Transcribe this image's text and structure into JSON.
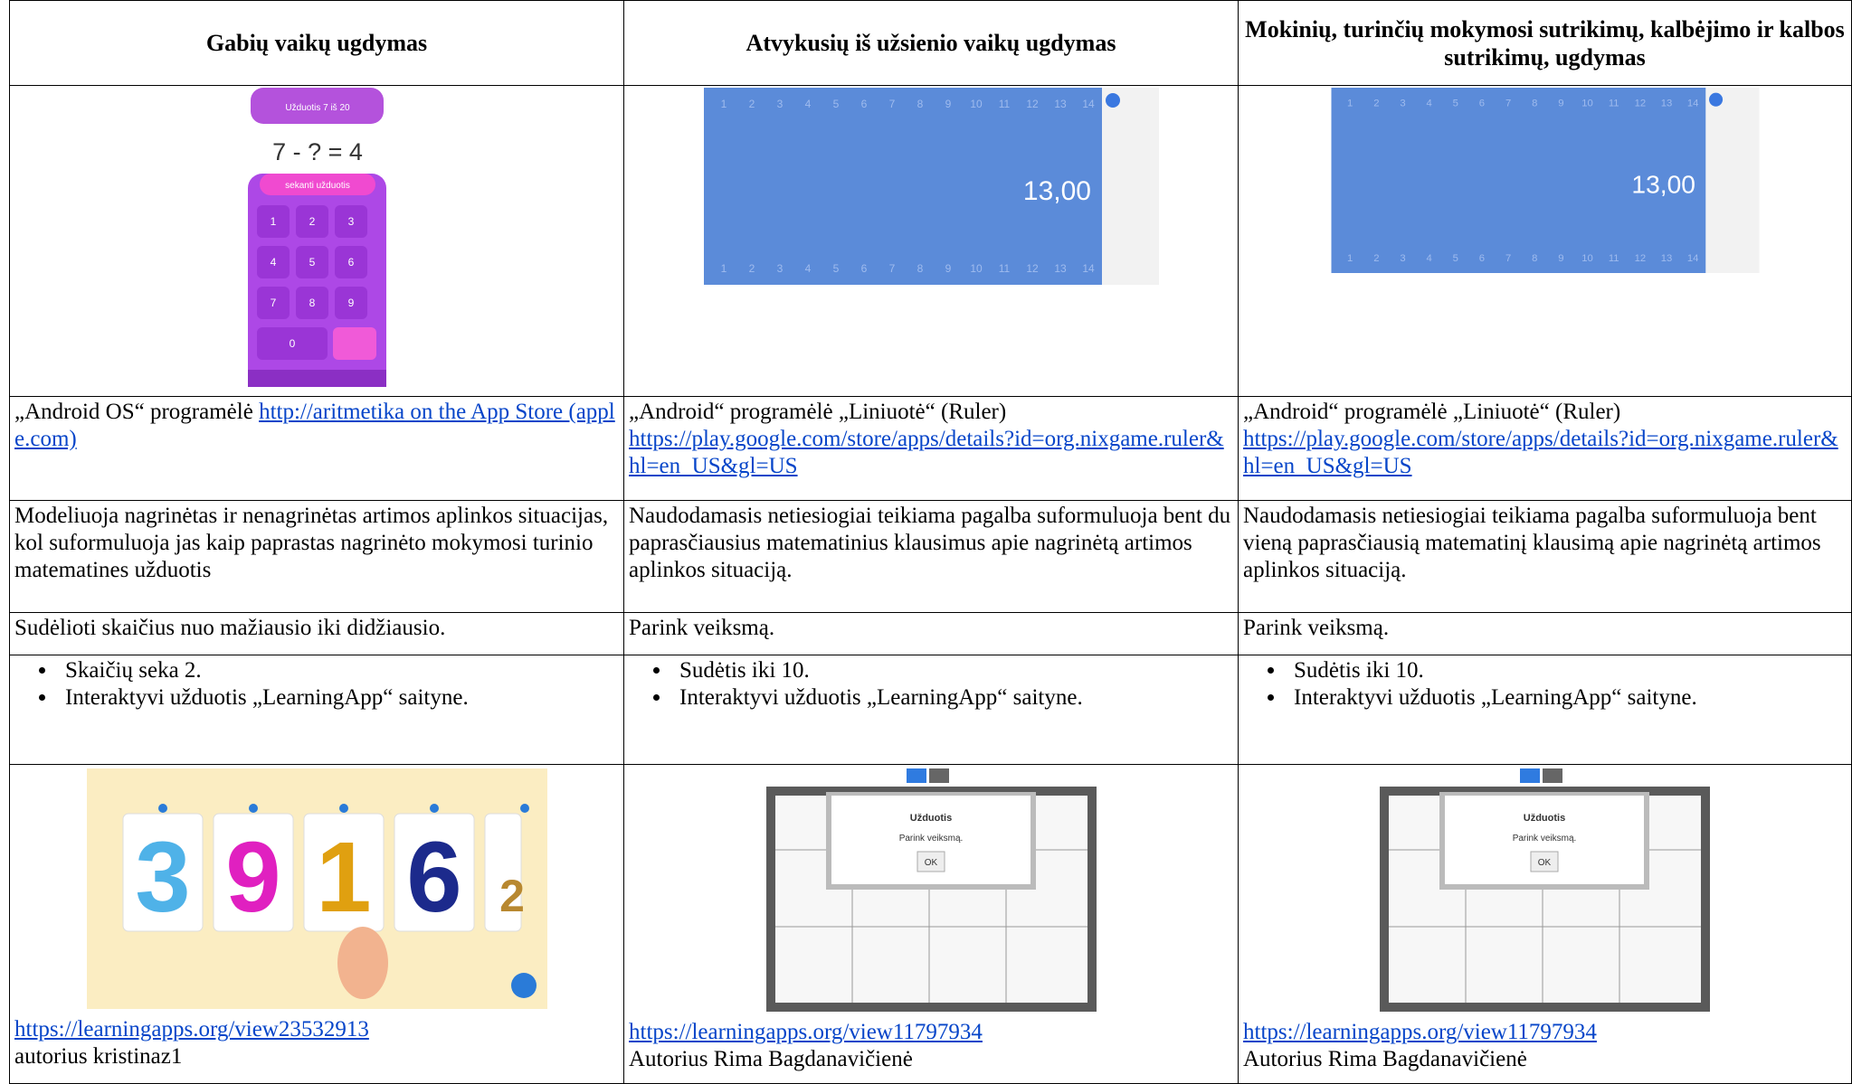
{
  "header": [
    "Gabių vaikų ugdymas",
    "Atvykusių iš užsienio vaikų ugdymas",
    "Mokinių, turinčių mokymosi sutrikimų, kalbėjimo ir kalbos sutrikimų, ugdymas"
  ],
  "images": {
    "calculator": {
      "title": "Užduotis 7 iš 20",
      "equation": "7 - ? = 4",
      "button": "sekanti užduotis",
      "keys": [
        "1",
        "2",
        "3",
        "4",
        "5",
        "6",
        "7",
        "8",
        "9",
        "0"
      ]
    },
    "ruler": {
      "reading": "13,00",
      "marks": [
        "1",
        "2",
        "3",
        "4",
        "5",
        "6",
        "7",
        "8",
        "9",
        "10",
        "11",
        "12",
        "13",
        "14"
      ]
    },
    "cards": [
      "3",
      "9",
      "1",
      "6",
      "2"
    ],
    "puzzle": {
      "title": "Užduotis",
      "text": "Parink veiksmą.",
      "button": "OK"
    }
  },
  "apps": [
    {
      "text": "„Android OS“ programėlė",
      "link": "http://aritmetika on the App Store (apple.com)"
    },
    {
      "text": "„Android“ programėlė „Liniuotė“ (Ruler)",
      "link": "https://play.google.com/store/apps/details?id=org.nixgame.ruler&hl=en_US&gl=US"
    },
    {
      "text": "„Android“ programėlė „Liniuotė“ (Ruler)",
      "link": "https://play.google.com/store/apps/details?id=org.nixgame.ruler&hl=en_US&gl=US"
    }
  ],
  "descriptions": [
    "Modeliuoja nagrinėtas ir nenagrinėtas artimos aplinkos situacijas, kol suformuluoja jas kaip paprastas nagrinėto mokymosi turinio matematines užduotis",
    "Naudodamasis netiesiogiai teikiama pagalba suformuluoja bent du paprasčiausius matematinius klausimus apie nagrinėtą artimos aplinkos situaciją.",
    "Naudodamasis netiesiogiai teikiama pagalba suformuluoja bent vieną paprasčiausią matematinį klausimą apie nagrinėtą artimos aplinkos situaciją."
  ],
  "tasks": [
    "Sudėlioti skaičius nuo mažiausio iki didžiausio.",
    "Parink veiksmą.",
    "Parink veiksmą."
  ],
  "bullets": [
    [
      "Skaičių seka 2.",
      "Interaktyvi užduotis „LearningApp“ saityne."
    ],
    [
      "Sudėtis iki 10.",
      "Interaktyvi užduotis „LearningApp“ saityne."
    ],
    [
      "Sudėtis iki 10.",
      "Interaktyvi užduotis „LearningApp“ saityne."
    ]
  ],
  "resources": [
    {
      "link": "https://learningapps.org/view23532913",
      "author": "autorius kristinaz1"
    },
    {
      "link": "https://learningapps.org/view11797934",
      "author": "Autorius Rima Bagdanavičienė"
    },
    {
      "link": "https://learningapps.org/view11797934",
      "author": "Autorius Rima Bagdanavičienė"
    }
  ]
}
